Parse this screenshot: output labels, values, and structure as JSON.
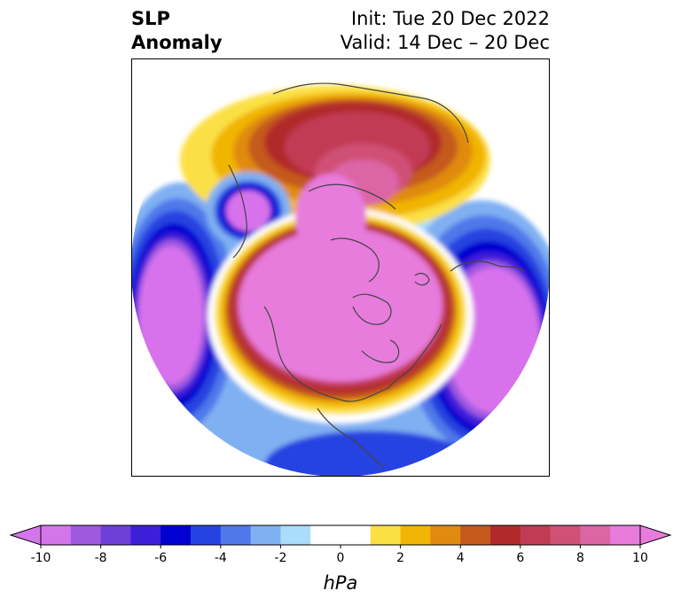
{
  "title": {
    "left_line1": "SLP",
    "left_line2": "Anomaly",
    "right_line1": "Init: Tue 20 Dec 2022",
    "right_line2": "Valid: 14 Dec – 20 Dec"
  },
  "colorbar": {
    "label": "hPa",
    "ticks": [
      "-10",
      "-8",
      "-6",
      "-4",
      "-2",
      "0",
      "2",
      "4",
      "6",
      "8",
      "10"
    ],
    "colors": [
      "#d575ec",
      "#9f58e0",
      "#6f3fda",
      "#3e1fd8",
      "#0000d0",
      "#2642e0",
      "#4f78ea",
      "#7fb0f2",
      "#acdcfb",
      "#ffffff",
      "#ffffff",
      "#fbe044",
      "#f1b506",
      "#e08b10",
      "#c45a1c",
      "#b12a2a",
      "#c23b54",
      "#d05076",
      "#dc65a6",
      "#e77cdc"
    ],
    "extend_low_color": "#d575ec",
    "extend_high_color": "#e77cdc"
  },
  "palette": {
    "deep_neg": "#d872ec",
    "neg8": "#9f58e0",
    "neg6": "#3e1fd8",
    "neg5": "#0000d0",
    "neg4": "#2642e0",
    "neg3": "#4f78ea",
    "neg2": "#7fb0f2",
    "neg1": "#acdcfb",
    "pos1": "#fbe044",
    "pos2": "#f1b506",
    "pos3": "#e08b10",
    "pos4": "#c45a1c",
    "pos5": "#b12a2a",
    "pos6": "#c23b54",
    "pos7": "#d05076",
    "pos8": "#dc65a6",
    "pos10": "#e77cdc",
    "coast": "#444444"
  }
}
